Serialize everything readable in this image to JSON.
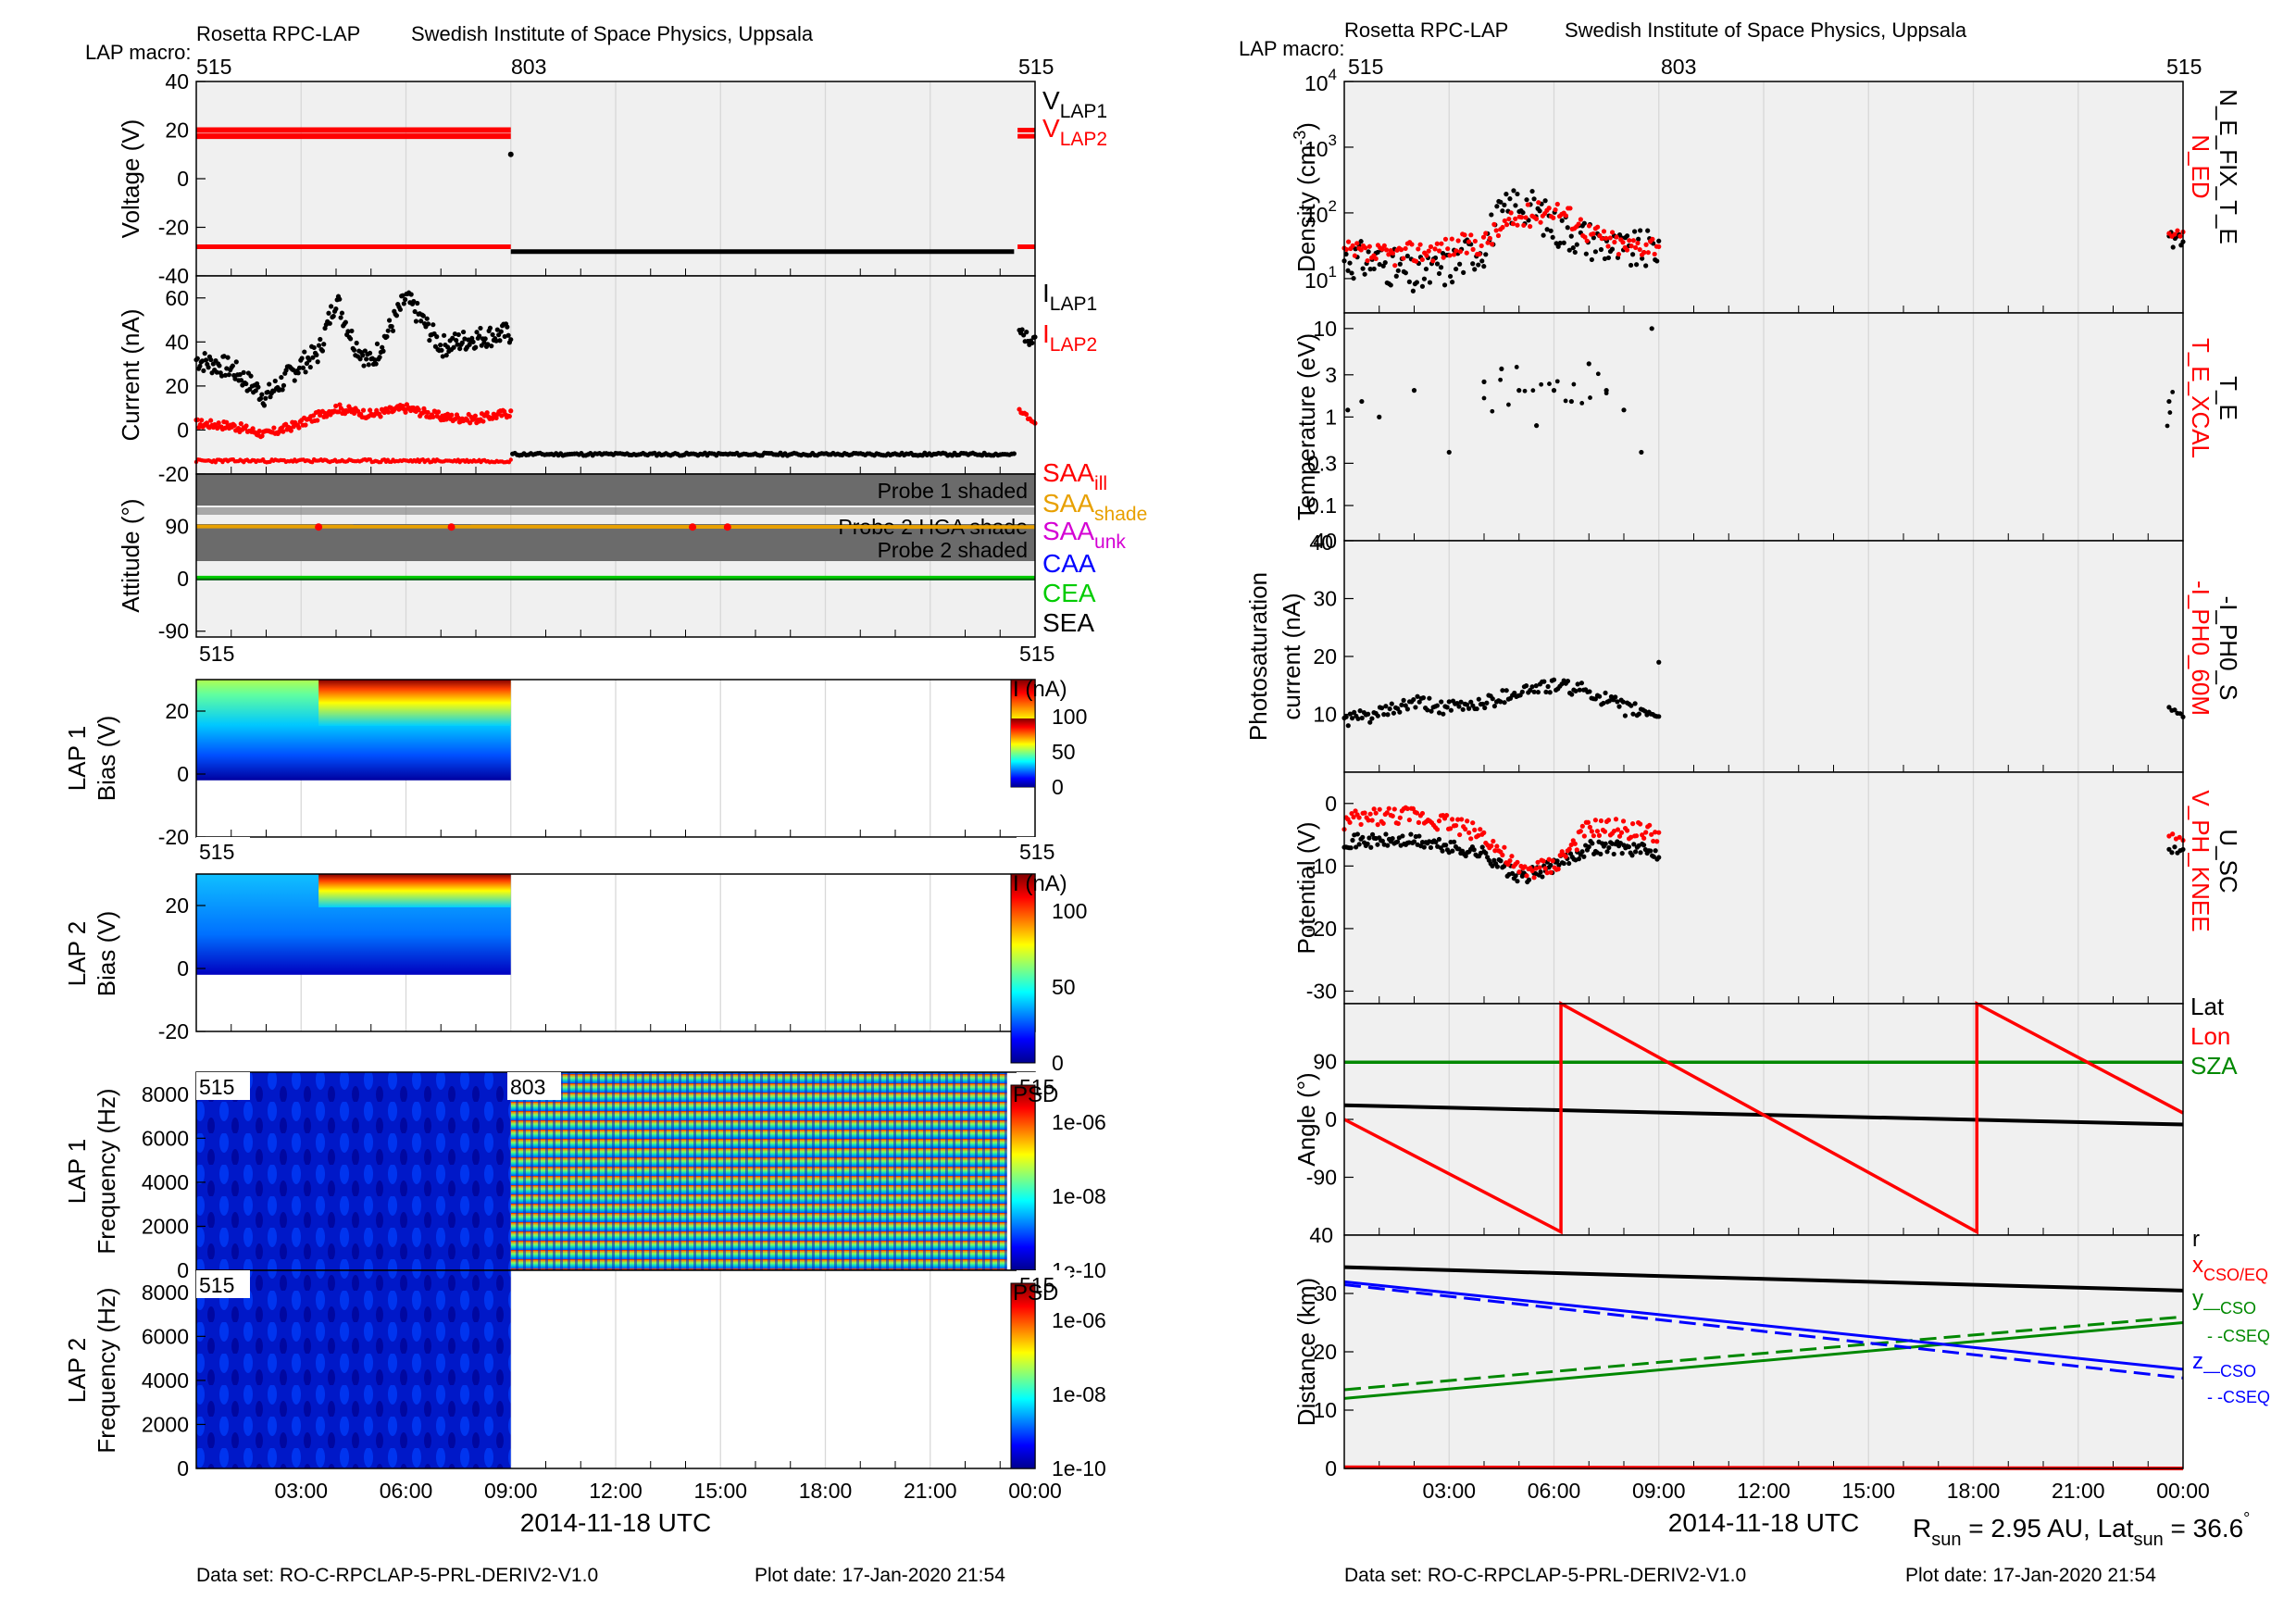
{
  "header": {
    "instrument": "Rosetta RPC-LAP",
    "institute": "Swedish Institute of Space Physics, Uppsala",
    "macro_label": "LAP macro:",
    "macros": [
      "515",
      "803",
      "515"
    ]
  },
  "footer": {
    "dataset": "Data set: RO-C-RPCLAP-5-PRL-DERIV2-V1.0",
    "plot_date": "Plot date: 17-Jan-2020 21:54"
  },
  "x_axis": {
    "label": "2014-11-18 UTC",
    "tick_labels": [
      "03:00",
      "06:00",
      "09:00",
      "12:00",
      "15:00",
      "18:00",
      "21:00",
      "00:00"
    ]
  },
  "rsun_text": {
    "a": "R",
    "a_sub": "sun",
    "b": " = 2.95 AU, Lat",
    "b_sub": "sun",
    "c": " = 36.6",
    "deg": "°"
  },
  "colors": {
    "lap1": "#000000",
    "lap2": "#ff0000",
    "saa_ill": "#ff0000",
    "saa_shade": "#e8a000",
    "saa_unk": "#d400d4",
    "caa": "#0000ff",
    "cea": "#00cc00",
    "sza": "#008800",
    "panel_bg": "#f0f0f0",
    "shade_band": "#6b6b6b"
  },
  "chart_data": [
    {
      "id": "voltage",
      "type": "scatter",
      "ylabel": "Voltage (V)",
      "ylim": [
        -40,
        40
      ],
      "yticks": [
        "40",
        "20",
        "0",
        "-20",
        "-40"
      ],
      "legend": [
        {
          "text": "V",
          "sub": "LAP1",
          "color": "#000000"
        },
        {
          "text": "V",
          "sub": "LAP2",
          "color": "#ff0000"
        }
      ],
      "series": [
        {
          "name": "V_LAP1",
          "segments": [
            {
              "t": [
                0,
                9
              ],
              "v": 20
            },
            {
              "t": [
                0,
                9
              ],
              "v": 17.5
            },
            {
              "t": [
                0,
                9
              ],
              "v": -28
            },
            {
              "t": [
                9,
                23.5
              ],
              "v": -30
            },
            {
              "t": [
                23.5,
                24
              ],
              "v": 20
            }
          ]
        },
        {
          "name": "V_LAP2",
          "segments": [
            {
              "t": [
                0,
                9
              ],
              "v": 20
            },
            {
              "t": [
                0,
                9
              ],
              "v": 17.5
            },
            {
              "t": [
                0,
                9
              ],
              "v": -28
            },
            {
              "t": [
                23.5,
                24
              ],
              "v": 17.5
            },
            {
              "t": [
                23.5,
                24
              ],
              "v": -28
            }
          ]
        }
      ]
    },
    {
      "id": "current",
      "type": "scatter",
      "ylabel": "Current (nA)",
      "ylim": [
        -20,
        70
      ],
      "yticks": [
        "60",
        "40",
        "20",
        "0",
        "-20"
      ],
      "legend": [
        {
          "text": "I",
          "sub": "LAP1",
          "color": "#000000"
        },
        {
          "text": "I",
          "sub": "LAP2",
          "color": "#ff0000"
        }
      ],
      "series": [
        {
          "name": "I_LAP1",
          "x": [
            0,
            1,
            2,
            3,
            3.5,
            4,
            4.5,
            5,
            6,
            7,
            8,
            9,
            9.05,
            12,
            15,
            18,
            21,
            23.5,
            23.6,
            24
          ],
          "y": [
            32,
            28,
            15,
            30,
            35,
            60,
            40,
            30,
            60,
            38,
            42,
            44,
            -11,
            -11,
            -11,
            -10,
            -11,
            -11,
            44,
            40
          ]
        },
        {
          "name": "I_LAP2",
          "x": [
            0,
            1,
            2,
            3,
            4,
            5,
            6,
            7,
            8,
            9,
            23.5,
            24
          ],
          "y": [
            3,
            2,
            -2,
            3,
            10,
            7,
            10,
            6,
            5,
            8,
            8,
            4
          ]
        },
        {
          "name": "I_LAP2_low",
          "x": [
            0,
            9
          ],
          "y": [
            -14,
            -14
          ]
        }
      ]
    },
    {
      "id": "attitude",
      "type": "line",
      "ylabel": "Attitude (°)",
      "ylim": [
        -100,
        180
      ],
      "yticks": [
        "90",
        "0",
        "-90"
      ],
      "bands": [
        {
          "label": "Probe 1 shaded",
          "range": [
            125,
            180
          ]
        },
        {
          "label": "Probe 2 HGA shade",
          "range": [
            100,
            110
          ]
        },
        {
          "label": "Probe 2 shaded",
          "range": [
            25,
            75
          ]
        }
      ],
      "legend": [
        {
          "text": "SAA",
          "sub": "ill",
          "color": "#ff0000"
        },
        {
          "text": "SAA",
          "sub": "shade",
          "color": "#e8a000"
        },
        {
          "text": "SAA",
          "sub": "unk",
          "color": "#d400d4"
        },
        {
          "text": "CAA",
          "sub": "",
          "color": "#0000ff"
        },
        {
          "text": "CEA",
          "sub": "",
          "color": "#00cc00"
        },
        {
          "text": "SEA",
          "sub": "",
          "color": "#000000"
        }
      ],
      "series": [
        {
          "name": "SAA",
          "value": 90
        },
        {
          "name": "CAA",
          "value": 0
        },
        {
          "name": "CEA",
          "value": 0
        },
        {
          "name": "SEA",
          "value": 0
        }
      ]
    },
    {
      "id": "lap1_sweep",
      "type": "heatmap",
      "ylabel": "LAP 1",
      "ylabel2": "Bias (V)",
      "ylim": [
        -20,
        30
      ],
      "yticks": [
        "20",
        "0",
        "-20"
      ],
      "colorbar_label": "I (nA)",
      "colorbar_ticks": [
        "100",
        "50",
        "0"
      ],
      "tag_left": "515",
      "tag_right": "515",
      "coverage": [
        [
          0,
          9
        ],
        [
          23.5,
          24
        ]
      ]
    },
    {
      "id": "lap2_sweep",
      "type": "heatmap",
      "ylabel": "LAP 2",
      "ylabel2": "Bias (V)",
      "ylim": [
        -20,
        30
      ],
      "yticks": [
        "20",
        "0",
        "-20"
      ],
      "colorbar_label": "I (nA)",
      "colorbar_ticks": [
        "100",
        "50",
        "0"
      ],
      "tag_left": "515",
      "tag_right": "515",
      "coverage": [
        [
          0,
          9
        ],
        [
          23.5,
          24
        ]
      ]
    },
    {
      "id": "lap1_psd",
      "type": "heatmap",
      "ylabel": "LAP 1",
      "ylabel2": "Frequency (Hz)",
      "ylim": [
        0,
        9000
      ],
      "yticks": [
        "8000",
        "6000",
        "4000",
        "2000",
        "0"
      ],
      "colorbar_label": "PSD",
      "colorbar_ticks": [
        "1e-06",
        "1e-08",
        "1e-10"
      ],
      "tags": [
        "515",
        "803",
        "515"
      ],
      "coverage": [
        [
          0,
          9
        ],
        [
          9,
          23.2
        ],
        [
          23.5,
          24
        ]
      ]
    },
    {
      "id": "lap2_psd",
      "type": "heatmap",
      "ylabel": "LAP 2",
      "ylabel2": "Frequency (Hz)",
      "ylim": [
        0,
        9000
      ],
      "yticks": [
        "8000",
        "6000",
        "4000",
        "2000",
        "0"
      ],
      "colorbar_label": "PSD",
      "colorbar_ticks": [
        "1e-06",
        "1e-08",
        "1e-10"
      ],
      "tags": [
        "515",
        "515"
      ],
      "coverage": [
        [
          0,
          9
        ],
        [
          23.5,
          24
        ]
      ]
    },
    {
      "id": "density",
      "type": "scatter",
      "ylabel": "Density (cm",
      "ylabel_sup": "-3",
      "ylabel_end": ")",
      "scale": "log",
      "ylim": [
        3,
        10000
      ],
      "yticks": [
        {
          "base": "10",
          "exp": "4"
        },
        {
          "base": "10",
          "exp": "3"
        },
        {
          "base": "10",
          "exp": "2"
        },
        {
          "base": "10",
          "exp": "1"
        }
      ],
      "legend_rot": [
        {
          "text": "N_ED",
          "color": "#ff0000"
        },
        {
          "text": "N_E_FIX_T_E",
          "color": "#000000"
        }
      ],
      "series": [
        {
          "name": "N_E_FIX_T_E",
          "x": [
            0,
            1,
            2,
            3,
            4,
            5,
            6,
            7,
            8,
            9,
            23.6,
            24
          ],
          "y": [
            20,
            18,
            10,
            15,
            30,
            150,
            60,
            40,
            25,
            30,
            35,
            40
          ]
        },
        {
          "name": "N_ED",
          "x": [
            0,
            1,
            2,
            3,
            4,
            5,
            6,
            7,
            8,
            9,
            23.6,
            24
          ],
          "y": [
            25,
            22,
            25,
            30,
            35,
            80,
            120,
            50,
            30,
            35,
            40,
            45
          ]
        }
      ]
    },
    {
      "id": "temperature",
      "type": "scatter",
      "ylabel": "Temperature (eV)",
      "scale": "log",
      "ylim": [
        0.04,
        15
      ],
      "yticks": [
        "10",
        "3",
        "1",
        "0.3",
        "0.1"
      ],
      "legend_rot": [
        {
          "text": "T_E_XCAL",
          "color": "#ff0000"
        },
        {
          "text": "T_E",
          "color": "#000000"
        }
      ],
      "series": [
        {
          "name": "T_E",
          "x": [
            0.1,
            0.5,
            1,
            2,
            3,
            4,
            4.5,
            5,
            5.5,
            6,
            6.5,
            7,
            7.5,
            8,
            8.5,
            8.8,
            23.6
          ],
          "y": [
            1.2,
            1.5,
            1,
            2,
            0.4,
            2.5,
            3.5,
            2,
            0.8,
            2,
            1.5,
            4,
            2,
            1.2,
            0.4,
            10,
            1.5
          ]
        }
      ]
    },
    {
      "id": "photosat",
      "type": "scatter",
      "ylabel": "Photosaturation",
      "ylabel2": "current (nA)",
      "ylim": [
        0,
        40
      ],
      "yticks": [
        "40",
        "30",
        "20",
        "10"
      ],
      "legend_rot": [
        {
          "text": "-I_PH0_60M",
          "color": "#ff0000"
        },
        {
          "text": "-I_PH0_S",
          "color": "#000000"
        }
      ],
      "series": [
        {
          "name": "-I_PH0_S",
          "x": [
            0,
            1,
            2,
            3,
            4,
            5,
            6,
            7,
            8,
            9,
            23.6,
            24
          ],
          "y": [
            9,
            10,
            12,
            11,
            12,
            14,
            15,
            14,
            11,
            10,
            11,
            10
          ]
        }
      ]
    },
    {
      "id": "potential",
      "type": "scatter",
      "ylabel": "Potential (V)",
      "ylim": [
        -32,
        5
      ],
      "yticks": [
        "0",
        "-10",
        "-20",
        "-30"
      ],
      "legend_rot": [
        {
          "text": "V_PH_KNEE",
          "color": "#ff0000"
        },
        {
          "text": "U_SC",
          "color": "#000000"
        }
      ],
      "series": [
        {
          "name": "U_SC",
          "x": [
            0,
            1,
            2,
            3,
            4,
            5,
            6,
            7,
            8,
            9,
            23.6,
            24
          ],
          "y": [
            -6,
            -6,
            -6,
            -7,
            -8,
            -12,
            -10,
            -7,
            -7,
            -8,
            -7,
            -8
          ]
        },
        {
          "name": "V_PH_KNEE",
          "x": [
            0,
            1,
            2,
            3,
            4,
            5,
            6,
            7,
            8,
            9,
            23.6,
            24
          ],
          "y": [
            -3,
            -2,
            -2,
            -3,
            -5,
            -11,
            -10,
            -4,
            -4,
            -5,
            -5,
            -6
          ]
        }
      ]
    },
    {
      "id": "angle",
      "type": "line",
      "ylabel": "Angle (°)",
      "ylim": [
        -180,
        180
      ],
      "yticks": [
        "90",
        "0",
        "-90"
      ],
      "yticks_bottom": "40",
      "legend": [
        {
          "text": "Lat",
          "sub": "",
          "color": "#000000"
        },
        {
          "text": "Lon",
          "sub": "",
          "color": "#ff0000"
        },
        {
          "text": "SZA",
          "sub": "",
          "color": "#008800"
        }
      ],
      "series": [
        {
          "name": "Lat",
          "x": [
            0,
            24
          ],
          "y": [
            22,
            -8
          ]
        },
        {
          "name": "Lon",
          "x": [
            0,
            6.2,
            6.2,
            18.1,
            18.1,
            24
          ],
          "y": [
            0,
            -175,
            180,
            -175,
            180,
            10
          ]
        },
        {
          "name": "SZA",
          "x": [
            0,
            24
          ],
          "y": [
            89,
            89
          ]
        }
      ]
    },
    {
      "id": "distance",
      "type": "line",
      "ylabel": "Distance (km)",
      "ylim": [
        0,
        40
      ],
      "yticks": [
        "30",
        "20",
        "10",
        "0"
      ],
      "legend": [
        {
          "text": "r",
          "sub": "",
          "color": "#000000"
        },
        {
          "text": "x",
          "sub": "CSO/EQ",
          "color": "#ff0000"
        },
        {
          "text": "y",
          "sub": "—CSO",
          "color": "#008800"
        },
        {
          "text": "",
          "sub": "- -CSEQ",
          "color": "#008800"
        },
        {
          "text": "z",
          "sub": "—CSO",
          "color": "#0000ff"
        },
        {
          "text": "",
          "sub": "- -CSEQ",
          "color": "#0000ff"
        }
      ],
      "series": [
        {
          "name": "r",
          "x": [
            0,
            24
          ],
          "y": [
            34.5,
            30.5
          ]
        },
        {
          "name": "x",
          "x": [
            0,
            24
          ],
          "y": [
            0.2,
            0
          ]
        },
        {
          "name": "y_CSO",
          "x": [
            0,
            24
          ],
          "y": [
            12,
            25
          ]
        },
        {
          "name": "y_CSEQ",
          "x": [
            0,
            24
          ],
          "y": [
            13.5,
            26
          ]
        },
        {
          "name": "z_CSO",
          "x": [
            0,
            24
          ],
          "y": [
            32,
            17
          ]
        },
        {
          "name": "z_CSEQ",
          "x": [
            0,
            24
          ],
          "y": [
            31.5,
            15.5
          ]
        }
      ]
    }
  ]
}
